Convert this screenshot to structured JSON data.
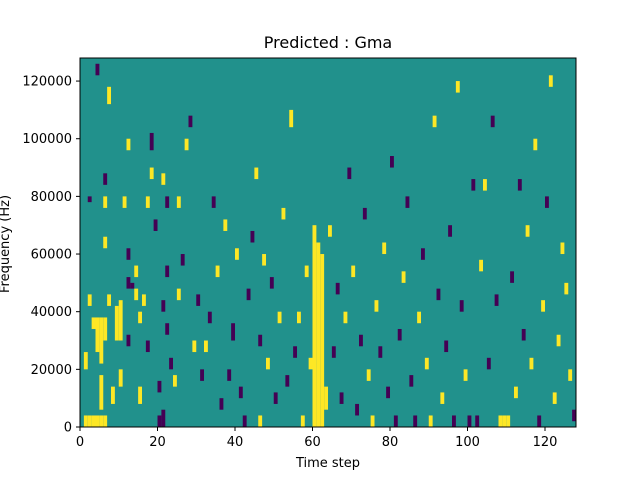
{
  "chart_data": {
    "type": "heatmap",
    "title": "Predicted : Gma",
    "xlabel": "Time step",
    "ylabel": "Frequency (Hz)",
    "xlim": [
      0,
      128
    ],
    "ylim": [
      0,
      128000
    ],
    "x_ticks": [
      0,
      20,
      40,
      60,
      80,
      100,
      120
    ],
    "y_ticks": [
      0,
      20000,
      40000,
      60000,
      80000,
      100000,
      120000
    ],
    "grid": false,
    "colormap": "viridis",
    "colors": {
      "background": "#21918c",
      "high": "#fde725",
      "low": "#440154"
    },
    "bins": {
      "time_steps": 128,
      "frequency_bins": 64,
      "bin_hz": 2000
    },
    "cells": [
      {
        "t": 3,
        "f0": 0,
        "f1": 4000,
        "v": "high"
      },
      {
        "t": 4,
        "f0": 0,
        "f1": 4000,
        "v": "high"
      },
      {
        "t": 5,
        "f0": 0,
        "f1": 4000,
        "v": "high"
      },
      {
        "t": 6,
        "f0": 0,
        "f1": 4000,
        "v": "high"
      },
      {
        "t": 4,
        "f0": 26000,
        "f1": 38000,
        "v": "high"
      },
      {
        "t": 5,
        "f0": 22000,
        "f1": 38000,
        "v": "high"
      },
      {
        "t": 6,
        "f0": 30000,
        "f1": 38000,
        "v": "high"
      },
      {
        "t": 9,
        "f0": 30000,
        "f1": 42000,
        "v": "high"
      },
      {
        "t": 10,
        "f0": 30000,
        "f1": 44000,
        "v": "high"
      },
      {
        "t": 5,
        "f0": 6000,
        "f1": 18000,
        "v": "high"
      },
      {
        "t": 8,
        "f0": 8000,
        "f1": 14000,
        "v": "high"
      },
      {
        "t": 10,
        "f0": 14000,
        "f1": 20000,
        "v": "high"
      },
      {
        "t": 7,
        "f0": 42000,
        "f1": 46000,
        "v": "high"
      },
      {
        "t": 6,
        "f0": 62000,
        "f1": 66000,
        "v": "high"
      },
      {
        "t": 7,
        "f0": 112000,
        "f1": 118000,
        "v": "high"
      },
      {
        "t": 6,
        "f0": 76000,
        "f1": 80000,
        "v": "high"
      },
      {
        "t": 3,
        "f0": 34000,
        "f1": 38000,
        "v": "high"
      },
      {
        "t": 1,
        "f0": 0,
        "f1": 4000,
        "v": "high"
      },
      {
        "t": 2,
        "f0": 0,
        "f1": 4000,
        "v": "high"
      },
      {
        "t": 1,
        "f0": 20000,
        "f1": 26000,
        "v": "high"
      },
      {
        "t": 2,
        "f0": 42000,
        "f1": 46000,
        "v": "high"
      },
      {
        "t": 2,
        "f0": 78000,
        "f1": 80000,
        "v": "low"
      },
      {
        "t": 4,
        "f0": 122000,
        "f1": 126000,
        "v": "low"
      },
      {
        "t": 6,
        "f0": 84000,
        "f1": 88000,
        "v": "low"
      },
      {
        "t": 11,
        "f0": 76000,
        "f1": 80000,
        "v": "high"
      },
      {
        "t": 12,
        "f0": 96000,
        "f1": 100000,
        "v": "high"
      },
      {
        "t": 12,
        "f0": 58000,
        "f1": 62000,
        "v": "low"
      },
      {
        "t": 12,
        "f0": 48000,
        "f1": 52000,
        "v": "low"
      },
      {
        "t": 12,
        "f0": 28000,
        "f1": 32000,
        "v": "low"
      },
      {
        "t": 14,
        "f0": 44000,
        "f1": 48000,
        "v": "high"
      },
      {
        "t": 13,
        "f0": 48000,
        "f1": 50000,
        "v": "low"
      },
      {
        "t": 14,
        "f0": 52000,
        "f1": 56000,
        "v": "high"
      },
      {
        "t": 15,
        "f0": 36000,
        "f1": 40000,
        "v": "high"
      },
      {
        "t": 15,
        "f0": 8000,
        "f1": 14000,
        "v": "high"
      },
      {
        "t": 16,
        "f0": 42000,
        "f1": 46000,
        "v": "high"
      },
      {
        "t": 17,
        "f0": 76000,
        "f1": 80000,
        "v": "high"
      },
      {
        "t": 17,
        "f0": 26000,
        "f1": 30000,
        "v": "low"
      },
      {
        "t": 18,
        "f0": 86000,
        "f1": 90000,
        "v": "high"
      },
      {
        "t": 18,
        "f0": 96000,
        "f1": 102000,
        "v": "low"
      },
      {
        "t": 19,
        "f0": 68000,
        "f1": 72000,
        "v": "low"
      },
      {
        "t": 20,
        "f0": 0,
        "f1": 4000,
        "v": "low"
      },
      {
        "t": 20,
        "f0": 12000,
        "f1": 16000,
        "v": "low"
      },
      {
        "t": 21,
        "f0": 0,
        "f1": 6000,
        "v": "low"
      },
      {
        "t": 21,
        "f0": 40000,
        "f1": 44000,
        "v": "low"
      },
      {
        "t": 21,
        "f0": 84000,
        "f1": 88000,
        "v": "high"
      },
      {
        "t": 22,
        "f0": 32000,
        "f1": 36000,
        "v": "low"
      },
      {
        "t": 22,
        "f0": 76000,
        "f1": 80000,
        "v": "low"
      },
      {
        "t": 22,
        "f0": 52000,
        "f1": 56000,
        "v": "low"
      },
      {
        "t": 23,
        "f0": 20000,
        "f1": 24000,
        "v": "low"
      },
      {
        "t": 24,
        "f0": 14000,
        "f1": 18000,
        "v": "high"
      },
      {
        "t": 25,
        "f0": 44000,
        "f1": 48000,
        "v": "high"
      },
      {
        "t": 25,
        "f0": 76000,
        "f1": 80000,
        "v": "high"
      },
      {
        "t": 26,
        "f0": 56000,
        "f1": 60000,
        "v": "low"
      },
      {
        "t": 27,
        "f0": 96000,
        "f1": 100000,
        "v": "high"
      },
      {
        "t": 28,
        "f0": 104000,
        "f1": 108000,
        "v": "low"
      },
      {
        "t": 29,
        "f0": 26000,
        "f1": 30000,
        "v": "high"
      },
      {
        "t": 30,
        "f0": 42000,
        "f1": 46000,
        "v": "low"
      },
      {
        "t": 31,
        "f0": 16000,
        "f1": 20000,
        "v": "low"
      },
      {
        "t": 32,
        "f0": 26000,
        "f1": 30000,
        "v": "high"
      },
      {
        "t": 33,
        "f0": 36000,
        "f1": 40000,
        "v": "low"
      },
      {
        "t": 34,
        "f0": 76000,
        "f1": 80000,
        "v": "low"
      },
      {
        "t": 35,
        "f0": 52000,
        "f1": 56000,
        "v": "high"
      },
      {
        "t": 36,
        "f0": 6000,
        "f1": 10000,
        "v": "low"
      },
      {
        "t": 37,
        "f0": 68000,
        "f1": 72000,
        "v": "high"
      },
      {
        "t": 38,
        "f0": 16000,
        "f1": 20000,
        "v": "low"
      },
      {
        "t": 39,
        "f0": 30000,
        "f1": 36000,
        "v": "low"
      },
      {
        "t": 40,
        "f0": 58000,
        "f1": 62000,
        "v": "high"
      },
      {
        "t": 41,
        "f0": 10000,
        "f1": 14000,
        "v": "low"
      },
      {
        "t": 42,
        "f0": 0,
        "f1": 4000,
        "v": "low"
      },
      {
        "t": 43,
        "f0": 44000,
        "f1": 48000,
        "v": "low"
      },
      {
        "t": 44,
        "f0": 64000,
        "f1": 68000,
        "v": "low"
      },
      {
        "t": 45,
        "f0": 86000,
        "f1": 90000,
        "v": "high"
      },
      {
        "t": 46,
        "f0": 0,
        "f1": 4000,
        "v": "high"
      },
      {
        "t": 46,
        "f0": 28000,
        "f1": 32000,
        "v": "low"
      },
      {
        "t": 47,
        "f0": 56000,
        "f1": 60000,
        "v": "high"
      },
      {
        "t": 48,
        "f0": 20000,
        "f1": 24000,
        "v": "high"
      },
      {
        "t": 49,
        "f0": 48000,
        "f1": 52000,
        "v": "low"
      },
      {
        "t": 50,
        "f0": 8000,
        "f1": 12000,
        "v": "low"
      },
      {
        "t": 51,
        "f0": 36000,
        "f1": 40000,
        "v": "high"
      },
      {
        "t": 52,
        "f0": 72000,
        "f1": 76000,
        "v": "high"
      },
      {
        "t": 53,
        "f0": 14000,
        "f1": 18000,
        "v": "low"
      },
      {
        "t": 54,
        "f0": 104000,
        "f1": 110000,
        "v": "high"
      },
      {
        "t": 55,
        "f0": 24000,
        "f1": 28000,
        "v": "low"
      },
      {
        "t": 56,
        "f0": 36000,
        "f1": 40000,
        "v": "high"
      },
      {
        "t": 57,
        "f0": 0,
        "f1": 4000,
        "v": "high"
      },
      {
        "t": 58,
        "f0": 52000,
        "f1": 56000,
        "v": "high"
      },
      {
        "t": 59,
        "f0": 20000,
        "f1": 24000,
        "v": "high"
      },
      {
        "t": 60,
        "f0": 0,
        "f1": 70000,
        "v": "high"
      },
      {
        "t": 61,
        "f0": 0,
        "f1": 64000,
        "v": "high"
      },
      {
        "t": 62,
        "f0": 0,
        "f1": 60000,
        "v": "high"
      },
      {
        "t": 63,
        "f0": 6000,
        "f1": 14000,
        "v": "high"
      },
      {
        "t": 64,
        "f0": 66000,
        "f1": 70000,
        "v": "high"
      },
      {
        "t": 65,
        "f0": 24000,
        "f1": 28000,
        "v": "low"
      },
      {
        "t": 66,
        "f0": 46000,
        "f1": 50000,
        "v": "low"
      },
      {
        "t": 67,
        "f0": 8000,
        "f1": 12000,
        "v": "low"
      },
      {
        "t": 68,
        "f0": 36000,
        "f1": 40000,
        "v": "high"
      },
      {
        "t": 69,
        "f0": 86000,
        "f1": 90000,
        "v": "low"
      },
      {
        "t": 70,
        "f0": 52000,
        "f1": 56000,
        "v": "high"
      },
      {
        "t": 71,
        "f0": 4000,
        "f1": 8000,
        "v": "low"
      },
      {
        "t": 72,
        "f0": 28000,
        "f1": 32000,
        "v": "low"
      },
      {
        "t": 73,
        "f0": 72000,
        "f1": 76000,
        "v": "low"
      },
      {
        "t": 74,
        "f0": 16000,
        "f1": 20000,
        "v": "high"
      },
      {
        "t": 75,
        "f0": 0,
        "f1": 4000,
        "v": "high"
      },
      {
        "t": 76,
        "f0": 40000,
        "f1": 44000,
        "v": "high"
      },
      {
        "t": 77,
        "f0": 24000,
        "f1": 28000,
        "v": "low"
      },
      {
        "t": 78,
        "f0": 60000,
        "f1": 64000,
        "v": "high"
      },
      {
        "t": 79,
        "f0": 10000,
        "f1": 14000,
        "v": "low"
      },
      {
        "t": 80,
        "f0": 90000,
        "f1": 94000,
        "v": "low"
      },
      {
        "t": 81,
        "f0": 0,
        "f1": 4000,
        "v": "low"
      },
      {
        "t": 82,
        "f0": 30000,
        "f1": 34000,
        "v": "low"
      },
      {
        "t": 83,
        "f0": 50000,
        "f1": 54000,
        "v": "high"
      },
      {
        "t": 84,
        "f0": 76000,
        "f1": 80000,
        "v": "low"
      },
      {
        "t": 85,
        "f0": 14000,
        "f1": 18000,
        "v": "low"
      },
      {
        "t": 86,
        "f0": 0,
        "f1": 4000,
        "v": "low"
      },
      {
        "t": 87,
        "f0": 36000,
        "f1": 40000,
        "v": "high"
      },
      {
        "t": 88,
        "f0": 58000,
        "f1": 62000,
        "v": "low"
      },
      {
        "t": 89,
        "f0": 20000,
        "f1": 24000,
        "v": "high"
      },
      {
        "t": 90,
        "f0": 0,
        "f1": 4000,
        "v": "high"
      },
      {
        "t": 91,
        "f0": 104000,
        "f1": 108000,
        "v": "high"
      },
      {
        "t": 92,
        "f0": 44000,
        "f1": 48000,
        "v": "low"
      },
      {
        "t": 93,
        "f0": 8000,
        "f1": 12000,
        "v": "high"
      },
      {
        "t": 94,
        "f0": 26000,
        "f1": 30000,
        "v": "low"
      },
      {
        "t": 95,
        "f0": 66000,
        "f1": 70000,
        "v": "low"
      },
      {
        "t": 96,
        "f0": 0,
        "f1": 4000,
        "v": "low"
      },
      {
        "t": 97,
        "f0": 116000,
        "f1": 120000,
        "v": "high"
      },
      {
        "t": 98,
        "f0": 40000,
        "f1": 44000,
        "v": "low"
      },
      {
        "t": 99,
        "f0": 16000,
        "f1": 20000,
        "v": "high"
      },
      {
        "t": 100,
        "f0": 0,
        "f1": 4000,
        "v": "low"
      },
      {
        "t": 101,
        "f0": 82000,
        "f1": 86000,
        "v": "low"
      },
      {
        "t": 102,
        "f0": 0,
        "f1": 4000,
        "v": "low"
      },
      {
        "t": 103,
        "f0": 54000,
        "f1": 58000,
        "v": "high"
      },
      {
        "t": 104,
        "f0": 82000,
        "f1": 86000,
        "v": "high"
      },
      {
        "t": 105,
        "f0": 20000,
        "f1": 24000,
        "v": "low"
      },
      {
        "t": 106,
        "f0": 104000,
        "f1": 108000,
        "v": "low"
      },
      {
        "t": 107,
        "f0": 42000,
        "f1": 46000,
        "v": "low"
      },
      {
        "t": 108,
        "f0": 0,
        "f1": 4000,
        "v": "high"
      },
      {
        "t": 109,
        "f0": 0,
        "f1": 4000,
        "v": "high"
      },
      {
        "t": 110,
        "f0": 0,
        "f1": 4000,
        "v": "high"
      },
      {
        "t": 111,
        "f0": 50000,
        "f1": 54000,
        "v": "low"
      },
      {
        "t": 112,
        "f0": 10000,
        "f1": 14000,
        "v": "high"
      },
      {
        "t": 113,
        "f0": 82000,
        "f1": 86000,
        "v": "low"
      },
      {
        "t": 114,
        "f0": 30000,
        "f1": 34000,
        "v": "low"
      },
      {
        "t": 115,
        "f0": 66000,
        "f1": 70000,
        "v": "high"
      },
      {
        "t": 116,
        "f0": 20000,
        "f1": 24000,
        "v": "high"
      },
      {
        "t": 117,
        "f0": 96000,
        "f1": 100000,
        "v": "high"
      },
      {
        "t": 118,
        "f0": 0,
        "f1": 4000,
        "v": "low"
      },
      {
        "t": 119,
        "f0": 40000,
        "f1": 44000,
        "v": "high"
      },
      {
        "t": 120,
        "f0": 76000,
        "f1": 80000,
        "v": "low"
      },
      {
        "t": 121,
        "f0": 118000,
        "f1": 122000,
        "v": "high"
      },
      {
        "t": 122,
        "f0": 8000,
        "f1": 12000,
        "v": "high"
      },
      {
        "t": 123,
        "f0": 28000,
        "f1": 32000,
        "v": "high"
      },
      {
        "t": 124,
        "f0": 60000,
        "f1": 64000,
        "v": "high"
      },
      {
        "t": 125,
        "f0": 46000,
        "f1": 50000,
        "v": "high"
      },
      {
        "t": 126,
        "f0": 16000,
        "f1": 20000,
        "v": "high"
      },
      {
        "t": 127,
        "f0": 2000,
        "f1": 6000,
        "v": "low"
      }
    ]
  }
}
